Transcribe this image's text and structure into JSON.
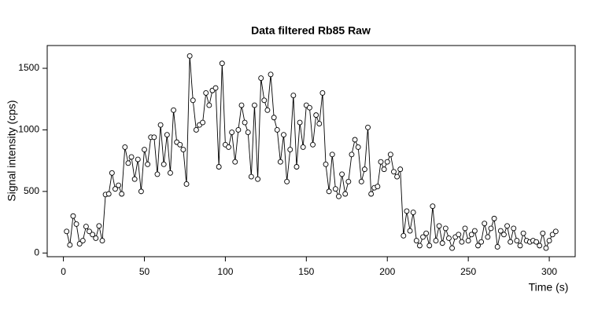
{
  "chart_data": {
    "type": "line",
    "title": "Data filtered Rb85 Raw",
    "x_label": "Time (s)",
    "y_label": "Signal intensity (cps)",
    "x": [
      2,
      4,
      6,
      8,
      10,
      12,
      14,
      16,
      18,
      20,
      22,
      24,
      26,
      28,
      30,
      32,
      34,
      36,
      38,
      40,
      42,
      44,
      46,
      48,
      50,
      52,
      54,
      56,
      58,
      60,
      62,
      64,
      66,
      68,
      70,
      72,
      74,
      76,
      78,
      80,
      82,
      84,
      86,
      88,
      90,
      92,
      94,
      96,
      98,
      100,
      102,
      104,
      106,
      108,
      110,
      112,
      114,
      116,
      118,
      120,
      122,
      124,
      126,
      128,
      130,
      132,
      134,
      136,
      138,
      140,
      142,
      144,
      146,
      148,
      150,
      152,
      154,
      156,
      158,
      160,
      162,
      164,
      166,
      168,
      170,
      172,
      174,
      176,
      178,
      180,
      182,
      184,
      186,
      188,
      190,
      192,
      194,
      196,
      198,
      200,
      202,
      204,
      206,
      208,
      210,
      212,
      214,
      216,
      218,
      220,
      222,
      224,
      226,
      228,
      230,
      232,
      234,
      236,
      238,
      240,
      242,
      244,
      246,
      248,
      250,
      252,
      254,
      256,
      258,
      260,
      262,
      264,
      266,
      268,
      270,
      272,
      274,
      276,
      278,
      280,
      282,
      284,
      286,
      288,
      290,
      292,
      294,
      296,
      298,
      300,
      302,
      304
    ],
    "series": [
      {
        "name": "Rb85",
        "color": "#000000",
        "values": [
          175,
          65,
          300,
          235,
          75,
          100,
          215,
          175,
          150,
          120,
          220,
          100,
          475,
          480,
          650,
          520,
          550,
          480,
          860,
          730,
          780,
          600,
          760,
          500,
          840,
          720,
          940,
          940,
          640,
          1040,
          720,
          960,
          650,
          1160,
          900,
          880,
          840,
          560,
          1600,
          1240,
          1000,
          1040,
          1060,
          1300,
          1200,
          1320,
          1340,
          700,
          1540,
          880,
          860,
          980,
          740,
          1000,
          1200,
          1060,
          980,
          620,
          1200,
          600,
          1420,
          1240,
          1160,
          1450,
          1100,
          1000,
          740,
          960,
          580,
          840,
          1280,
          700,
          1060,
          860,
          1200,
          1180,
          880,
          1120,
          1050,
          1300,
          720,
          500,
          800,
          520,
          460,
          640,
          480,
          580,
          800,
          920,
          860,
          580,
          680,
          1020,
          480,
          530,
          540,
          740,
          680,
          740,
          800,
          660,
          620,
          680,
          140,
          340,
          180,
          330,
          100,
          60,
          130,
          160,
          60,
          380,
          100,
          220,
          80,
          200,
          120,
          40,
          130,
          150,
          90,
          200,
          100,
          150,
          180,
          60,
          90,
          240,
          130,
          200,
          280,
          50,
          180,
          150,
          220,
          90,
          200,
          100,
          60,
          160,
          100,
          90,
          100,
          90,
          60,
          160,
          40,
          100,
          150,
          175
        ]
      }
    ],
    "xlim": [
      -10,
      316
    ],
    "ylim": [
      -30,
      1685
    ],
    "xticks": [
      0,
      50,
      100,
      150,
      200,
      250,
      300
    ],
    "yticks": [
      0,
      500,
      1000,
      1500
    ]
  }
}
